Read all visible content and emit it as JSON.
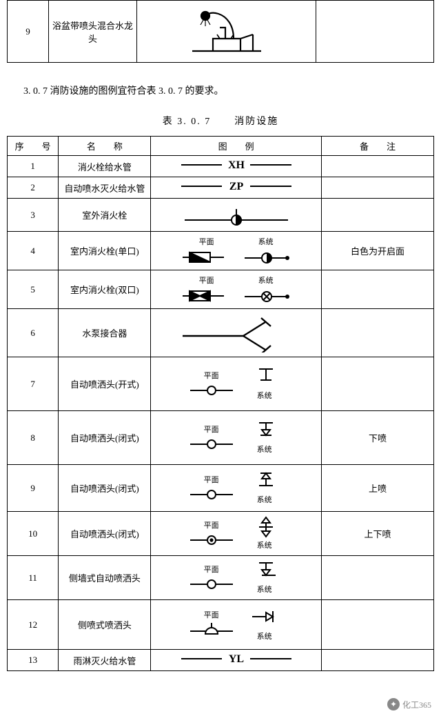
{
  "top_row": {
    "num": "9",
    "name": "浴盆带喷头混合水龙\n头",
    "note": ""
  },
  "intro_text": "3. 0. 7  消防设施的图例宜符合表 3. 0. 7 的要求。",
  "table_caption_left": "表 3. 0. 7",
  "table_caption_right": "消防设施",
  "headers": {
    "num": "序　　号",
    "name": "名　　称",
    "symbol": "图　　例",
    "note": "备　　注"
  },
  "label_plan": "平面",
  "label_system": "系统",
  "rows": [
    {
      "num": "1",
      "name": "消火栓给水管",
      "note": "",
      "h": 30,
      "symbol": "text_xh"
    },
    {
      "num": "2",
      "name": "自动喷水灭火给水管",
      "note": "",
      "h": 30,
      "symbol": "text_zp"
    },
    {
      "num": "3",
      "name": "室外消火栓",
      "note": "",
      "h": 48,
      "symbol": "outdoor_hydrant"
    },
    {
      "num": "4",
      "name": "室内消火栓(单口)",
      "note": "白色为开启面",
      "h": 56,
      "symbol": "indoor_single"
    },
    {
      "num": "5",
      "name": "室内消火栓(双口)",
      "note": "",
      "h": 56,
      "symbol": "indoor_double"
    },
    {
      "num": "6",
      "name": "水泵接合器",
      "note": "",
      "h": 70,
      "symbol": "pump_connector"
    },
    {
      "num": "7",
      "name": "自动喷洒头(开式)",
      "note": "",
      "h": 78,
      "symbol": "sprinkler_open"
    },
    {
      "num": "8",
      "name": "自动喷洒头(闭式)",
      "note": "下喷",
      "h": 78,
      "symbol": "sprinkler_down"
    },
    {
      "num": "9",
      "name": "自动喷洒头(闭式)",
      "note": "上喷",
      "h": 68,
      "symbol": "sprinkler_up"
    },
    {
      "num": "10",
      "name": "自动喷洒头(闭式)",
      "note": "上下喷",
      "h": 64,
      "symbol": "sprinkler_updown"
    },
    {
      "num": "11",
      "name": "侧墙式自动喷洒头",
      "note": "",
      "h": 64,
      "symbol": "sprinkler_side"
    },
    {
      "num": "12",
      "name": "侧喷式喷洒头",
      "note": "",
      "h": 72,
      "symbol": "sprinkler_sidejet"
    },
    {
      "num": "13",
      "name": "雨淋灭火给水管",
      "note": "",
      "h": 30,
      "symbol": "text_yl"
    }
  ],
  "colwidths": {
    "num": 72,
    "name": 130,
    "symbol": 240,
    "note": 158
  },
  "watermark": "化工365"
}
